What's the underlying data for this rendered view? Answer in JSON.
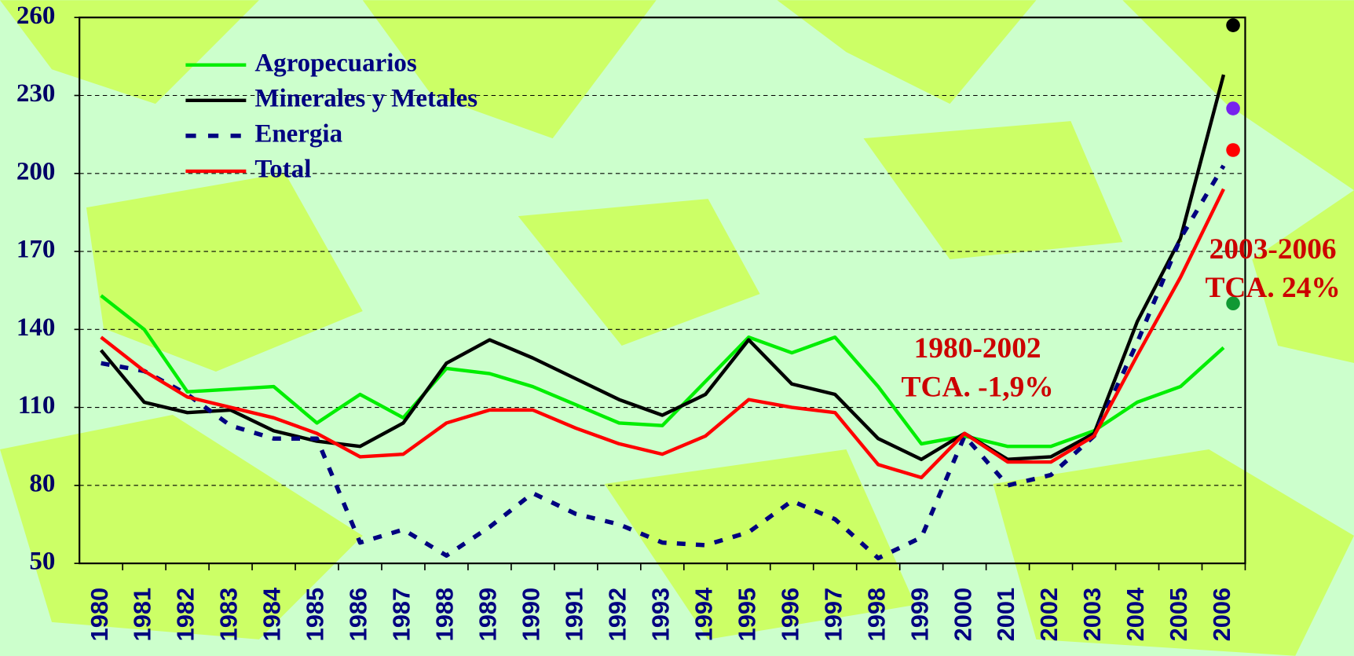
{
  "chart_data": {
    "type": "line",
    "categories": [
      "1980",
      "1981",
      "1982",
      "1983",
      "1984",
      "1985",
      "1986",
      "1987",
      "1988",
      "1989",
      "1990",
      "1991",
      "1992",
      "1993",
      "1994",
      "1995",
      "1996",
      "1997",
      "1998",
      "1999",
      "2000",
      "2001",
      "2002",
      "2003",
      "2004",
      "2005",
      "2006"
    ],
    "series": [
      {
        "name": "Agropecuarios",
        "color": "#00ee00",
        "style": "solid",
        "values": [
          153,
          140,
          116,
          117,
          118,
          104,
          115,
          106,
          125,
          123,
          118,
          111,
          104,
          103,
          120,
          137,
          131,
          137,
          118,
          96,
          99,
          95,
          95,
          101,
          112,
          118,
          133
        ]
      },
      {
        "name": "Minerales y Metales",
        "color": "#000000",
        "style": "solid",
        "values": [
          132,
          112,
          108,
          109,
          101,
          97,
          95,
          104,
          127,
          136,
          129,
          121,
          113,
          107,
          115,
          136,
          119,
          115,
          98,
          90,
          100,
          90,
          91,
          100,
          143,
          175,
          238
        ]
      },
      {
        "name": "Energia",
        "color": "#000080",
        "style": "dashed",
        "values": [
          127,
          124,
          115,
          103,
          98,
          98,
          58,
          63,
          53,
          64,
          77,
          69,
          65,
          58,
          57,
          62,
          74,
          67,
          52,
          60,
          99,
          80,
          84,
          99,
          135,
          175,
          203
        ]
      },
      {
        "name": "Total",
        "color": "#ff0000",
        "style": "solid",
        "values": [
          137,
          124,
          114,
          110,
          106,
          100,
          91,
          92,
          104,
          109,
          109,
          102,
          96,
          92,
          99,
          113,
          110,
          108,
          88,
          83,
          100,
          89,
          89,
          99,
          130,
          160,
          194
        ]
      }
    ],
    "markers": [
      {
        "color": "#000000",
        "value": 257
      },
      {
        "color": "#7722ee",
        "value": 225
      },
      {
        "color": "#ff0000",
        "value": 209
      },
      {
        "color": "#119933",
        "value": 150
      }
    ],
    "annotations": [
      [
        "1980-2002",
        "TCA. -1,9%"
      ],
      [
        "2003-2006",
        "TCA. 24%"
      ]
    ],
    "ylim": [
      50,
      260
    ],
    "yticks": [
      50,
      80,
      110,
      140,
      170,
      200,
      230,
      260
    ],
    "grid": true
  }
}
